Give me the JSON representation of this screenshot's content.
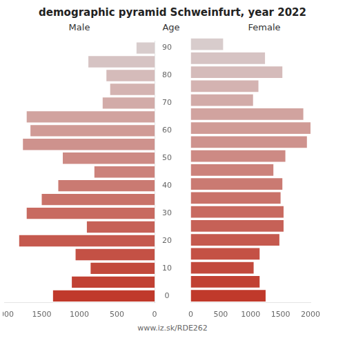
{
  "chart_data": {
    "type": "bar",
    "orientation": "horizontal",
    "title": "demographic pyramid Schweinfurt, year 2022",
    "y_label": "Age",
    "footer": "www.iz.sk/RDE262",
    "categories": [
      "0",
      null,
      "10",
      null,
      "20",
      null,
      "30",
      null,
      "40",
      null,
      "50",
      null,
      "60",
      null,
      "70",
      null,
      "80",
      null,
      "90"
    ],
    "series": [
      {
        "name": "Male",
        "values": [
          1350,
          1100,
          850,
          1050,
          1800,
          900,
          1700,
          1500,
          1280,
          800,
          1220,
          1750,
          1650,
          1700,
          690,
          590,
          640,
          880,
          240
        ]
      },
      {
        "name": "Female",
        "values": [
          1250,
          1150,
          1050,
          1150,
          1480,
          1550,
          1550,
          1500,
          1530,
          1380,
          1580,
          1940,
          2000,
          1880,
          1040,
          1130,
          1530,
          1240,
          540
        ]
      }
    ],
    "colors": [
      "#c0392b",
      "#c14133",
      "#c2493c",
      "#c45145",
      "#c5594e",
      "#c66157",
      "#c86a60",
      "#c97269",
      "#ca7a72",
      "#cc827b",
      "#cd8a84",
      "#ce928d",
      "#d09b96",
      "#d1a39f",
      "#d2aba8",
      "#d4b3b1",
      "#d5bbba",
      "#d6c3c3",
      "#d8cccc"
    ],
    "xlim": [
      0,
      2000
    ],
    "xticks": [
      0,
      500,
      1000,
      1500,
      2000
    ],
    "grid": false
  }
}
